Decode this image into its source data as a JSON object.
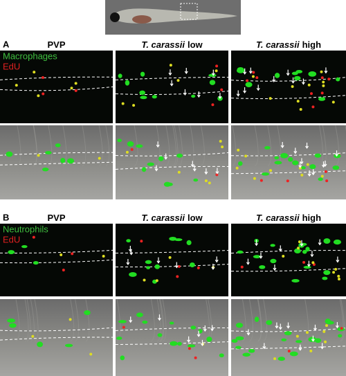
{
  "panels": [
    {
      "label": "A",
      "legend": [
        {
          "text": "Macrophages",
          "color": "#3fbf3f"
        },
        {
          "text": "EdU",
          "color": "#e02020"
        }
      ],
      "columns": [
        {
          "species": null,
          "dose": "PVP"
        },
        {
          "species": "T. carassii",
          "dose": "low"
        },
        {
          "species": "T. carassii",
          "dose": "high"
        }
      ]
    },
    {
      "label": "B",
      "legend": [
        {
          "text": "Neutrophils",
          "color": "#3fbf3f"
        },
        {
          "text": "EdU",
          "color": "#e02020"
        }
      ],
      "columns": [
        {
          "species": null,
          "dose": "PVP"
        },
        {
          "species": "T. carassii",
          "dose": "low"
        },
        {
          "species": "T. carassii",
          "dose": "high"
        }
      ]
    }
  ]
}
